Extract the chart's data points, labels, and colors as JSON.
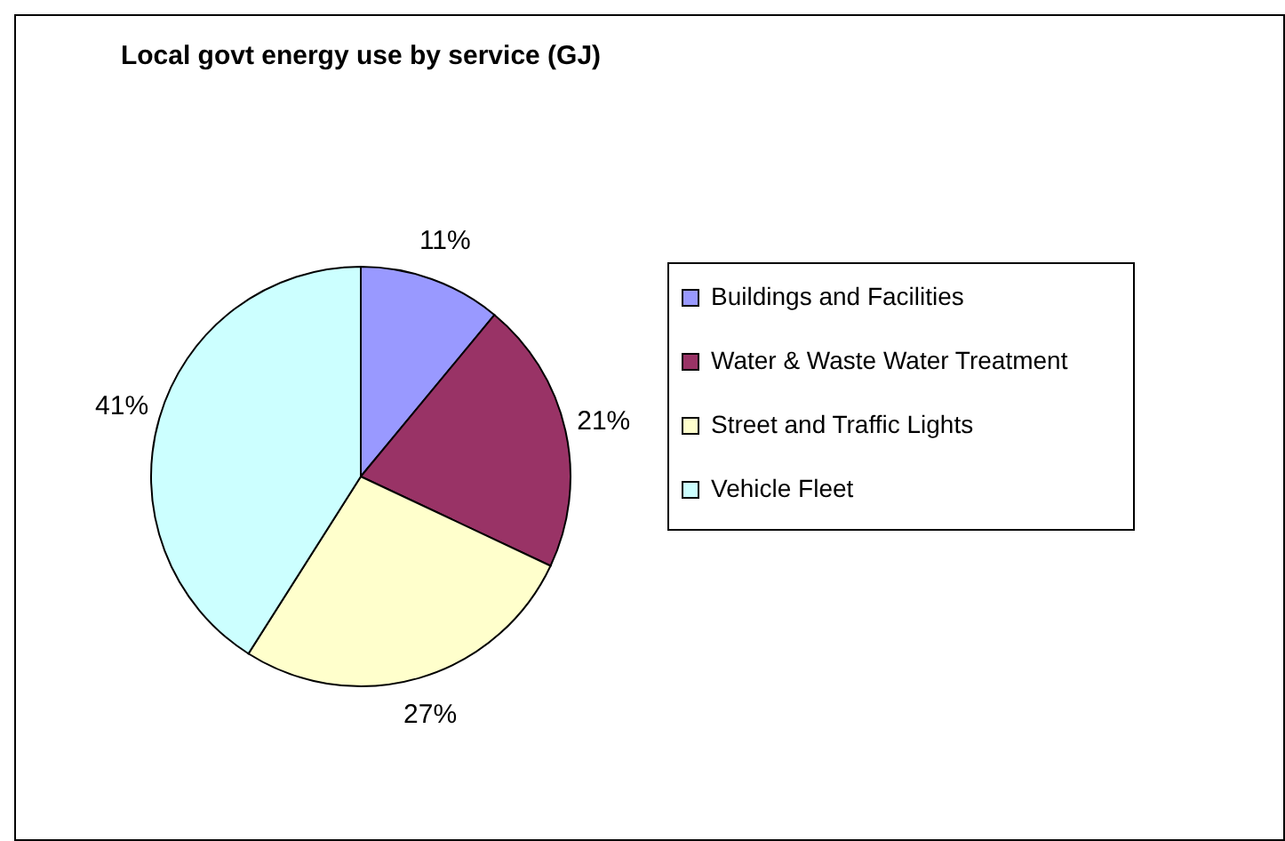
{
  "chart_data": {
    "type": "pie",
    "title": "Local govt energy use by service (GJ)",
    "categories": [
      "Buildings and Facilities",
      "Water & Waste Water Treatment",
      "Street and Traffic Lights",
      "Vehicle Fleet"
    ],
    "values": [
      11,
      21,
      27,
      41
    ],
    "value_labels": [
      "11%",
      "21%",
      "27%",
      "41%"
    ],
    "colors": [
      "#9999ff",
      "#993366",
      "#ffffcc",
      "#ccffff"
    ],
    "legend": "right"
  }
}
